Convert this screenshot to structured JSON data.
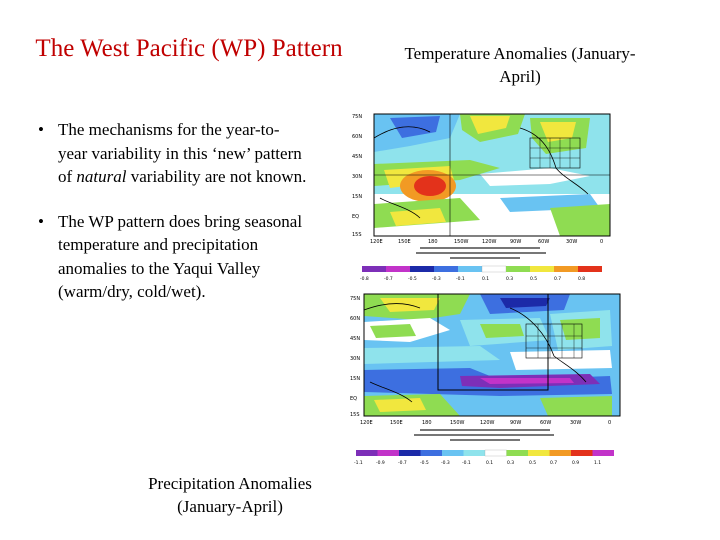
{
  "slide": {
    "title": "The West Pacific (WP) Pattern",
    "bullets": [
      {
        "before": "The mechanisms for the year-to-year variability in this ‘new’ pattern of ",
        "emph": "natural",
        "after": " variability are not known."
      },
      {
        "before": "The WP pattern does bring seasonal temperature and precipitation anomalies to the Yaqui Valley (warm/dry, cold/wet).",
        "emph": "",
        "after": ""
      }
    ],
    "bullet_symbol": "•",
    "temperature_caption": "Temperature Anomalies (January-April)",
    "precipitation_caption": "Precipitation Anomalies (January-April)"
  },
  "maps": {
    "lat_labels": [
      "75N",
      "60N",
      "45N",
      "30N",
      "15N",
      "EQ",
      "15S"
    ],
    "lon_labels": [
      "120E",
      "150E",
      "180",
      "150W",
      "120W",
      "90W",
      "60W",
      "30W",
      "0"
    ],
    "temp_scale": [
      "-0.8",
      "-0.7",
      "-0.5",
      "-0.3",
      "-0.1",
      "0.1",
      "0.3",
      "0.5",
      "0.7",
      "0.8"
    ],
    "precip_scale": [
      "-1.1",
      "-0.9",
      "-0.7",
      "-0.5",
      "-0.3",
      "-0.1",
      "0.1",
      "0.3",
      "0.5",
      "0.7",
      "0.9",
      "1.1"
    ],
    "colors": {
      "deep_blue": "#1c2aa8",
      "blue": "#3d6fe0",
      "light_blue": "#69c3f2",
      "cyan": "#8fe3ec",
      "white": "#ffffff",
      "green": "#8fdc52",
      "yellow": "#f1e73e",
      "orange": "#f29a24",
      "red": "#e3321b",
      "purple": "#7d2fb8",
      "magenta": "#c233c9"
    }
  }
}
